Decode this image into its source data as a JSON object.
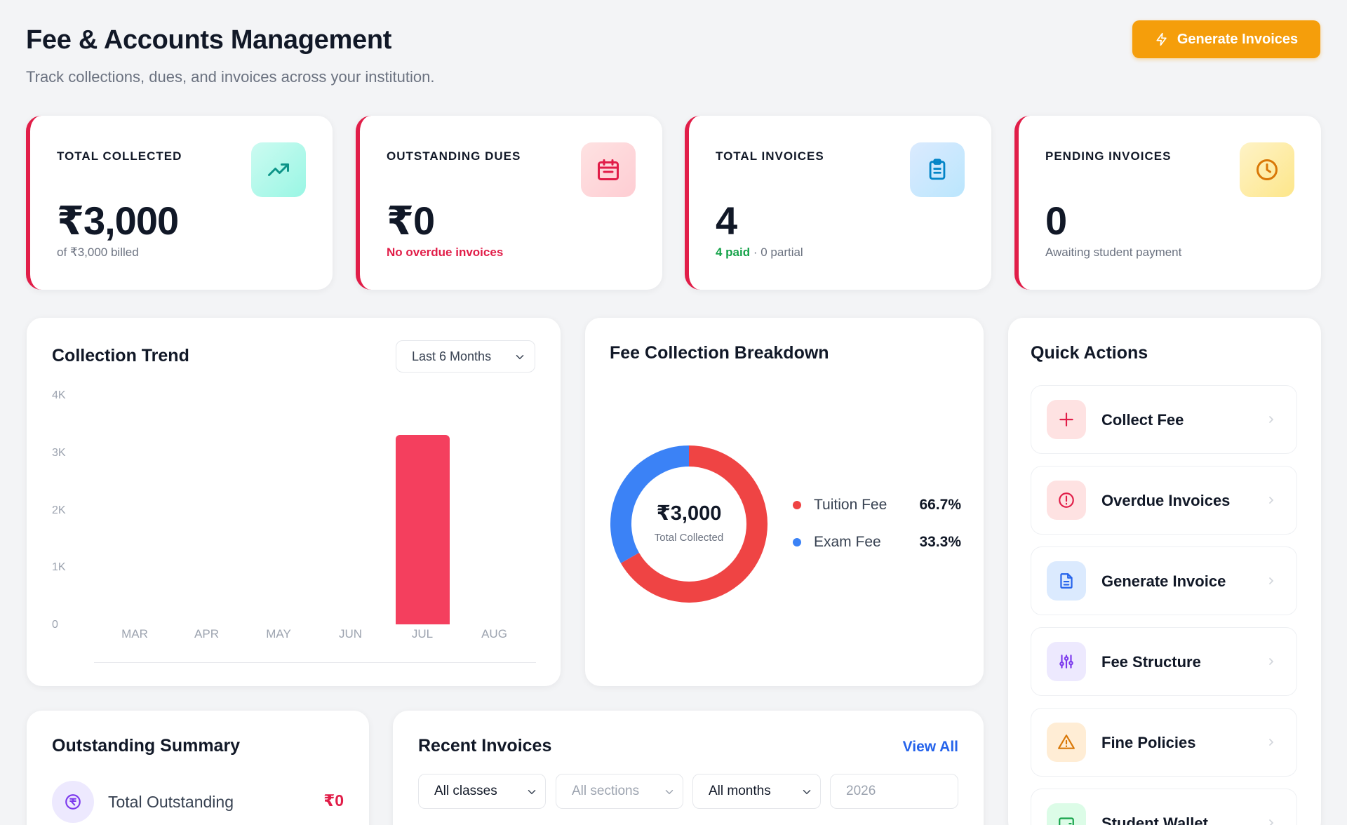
{
  "header": {
    "title": "Fee & Accounts Management",
    "subtitle": "Track collections, dues, and invoices across your institution.",
    "generate_button": "Generate Invoices",
    "generate_icon": "lightning-icon"
  },
  "stats": [
    {
      "label": "TOTAL COLLECTED",
      "value": "₹3,000",
      "sub": "of ₹3,000 billed",
      "icon": "trending-up-icon",
      "icon_bg": "#ccfbf1",
      "icon_color": "#0d9488"
    },
    {
      "label": "OUTSTANDING DUES",
      "value": "₹0",
      "sub": "No overdue invoices",
      "icon": "calendar-icon",
      "icon_bg": "#fee2e2",
      "icon_color": "#e11d48"
    },
    {
      "label": "TOTAL INVOICES",
      "value": "4",
      "sub_highlight": "4 paid",
      "sub_rest": " · 0 partial",
      "icon": "clipboard-icon",
      "icon_bg": "#dbeafe",
      "icon_color": "#0284c7"
    },
    {
      "label": "PENDING INVOICES",
      "value": "0",
      "sub": "Awaiting student payment",
      "icon": "clock-icon",
      "icon_bg": "#fef3c7",
      "icon_color": "#d97706"
    }
  ],
  "trend": {
    "title": "Collection Trend",
    "range_select": "Last 6 Months"
  },
  "chart_data": [
    {
      "type": "bar",
      "title": "Collection Trend",
      "categories": [
        "MAR",
        "APR",
        "MAY",
        "JUN",
        "JUL",
        "AUG"
      ],
      "values": [
        0,
        0,
        0,
        0,
        3000,
        0
      ],
      "y_ticks": [
        "4K",
        "3K",
        "2K",
        "1K",
        "0"
      ],
      "ylim": [
        0,
        4000
      ],
      "color": "#f43f5e"
    },
    {
      "type": "pie",
      "title": "Fee Collection Breakdown",
      "center_value": "₹3,000",
      "center_label": "Total Collected",
      "slices": [
        {
          "name": "Tuition Fee",
          "value": 66.7,
          "label": "66.7%",
          "color": "#ef4444"
        },
        {
          "name": "Exam Fee",
          "value": 33.3,
          "label": "33.3%",
          "color": "#3b82f6"
        }
      ]
    }
  ],
  "quick_actions": {
    "title": "Quick Actions",
    "items": [
      {
        "label": "Collect Fee",
        "icon": "plus-icon",
        "bg": "#fee2e2",
        "color": "#e11d48"
      },
      {
        "label": "Overdue Invoices",
        "icon": "alert-circle-icon",
        "bg": "#fee2e2",
        "color": "#e11d48"
      },
      {
        "label": "Generate Invoice",
        "icon": "file-icon",
        "bg": "#dbeafe",
        "color": "#2563eb"
      },
      {
        "label": "Fee Structure",
        "icon": "sliders-icon",
        "bg": "#ede9fe",
        "color": "#7c3aed"
      },
      {
        "label": "Fine Policies",
        "icon": "warning-icon",
        "bg": "#ffedd5",
        "color": "#d97706"
      },
      {
        "label": "Student Wallet",
        "icon": "wallet-icon",
        "bg": "#dcfce7",
        "color": "#16a34a"
      }
    ]
  },
  "outstanding": {
    "title": "Outstanding Summary",
    "row_label": "Total Outstanding",
    "row_value": "₹0",
    "row_icon": "rupee-icon"
  },
  "recent": {
    "title": "Recent Invoices",
    "view_all": "View All",
    "filters": {
      "classes": "All classes",
      "sections": "All sections",
      "months": "All months",
      "year": "2026"
    }
  }
}
